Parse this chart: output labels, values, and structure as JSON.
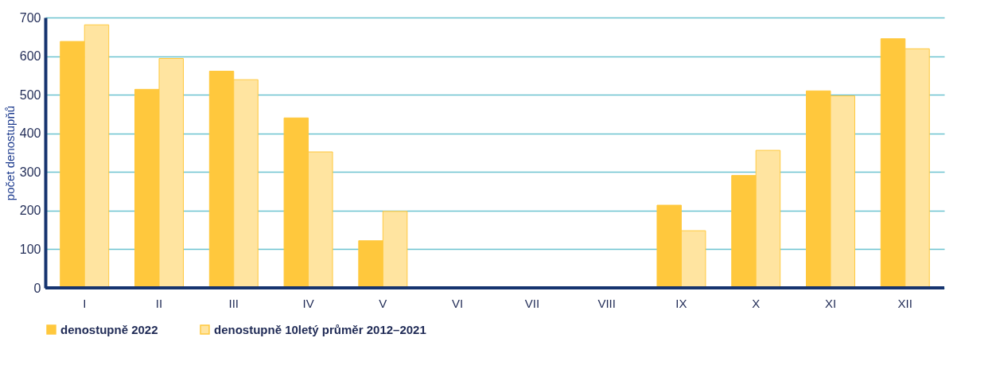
{
  "chart_data": {
    "type": "bar",
    "ylabel": "počet denostupňů",
    "categories": [
      "I",
      "II",
      "III",
      "IV",
      "V",
      "VI",
      "VII",
      "VIII",
      "IX",
      "X",
      "XI",
      "XII"
    ],
    "series": [
      {
        "name": "denostupně 2022",
        "color": "#ffc83d",
        "values": [
          638,
          514,
          561,
          440,
          122,
          0,
          0,
          0,
          214,
          291,
          510,
          645
        ]
      },
      {
        "name": "denostupně  10letý průměr 2012–2021",
        "color": "#ffe4a0",
        "values": [
          681,
          594,
          539,
          352,
          198,
          0,
          0,
          0,
          148,
          356,
          497,
          619
        ]
      }
    ],
    "ylim": [
      0,
      700
    ],
    "yticks": [
      0,
      100,
      200,
      300,
      400,
      500,
      600,
      700
    ],
    "grid": "y",
    "legend": "bottom left"
  }
}
